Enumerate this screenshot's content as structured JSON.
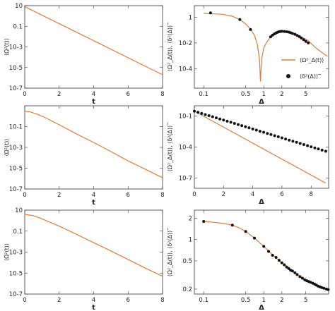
{
  "colors": {
    "line": "#e07b39",
    "dot": "#111111",
    "axis": "#333333"
  },
  "legend": {
    "line_label": "⟨Ω²_Δ(t)⟩",
    "dot_label": "⟨δ²(Δ)⟩‾"
  },
  "chart_data": [
    {
      "id": "r1-left",
      "type": "line",
      "scale": "log-y",
      "xlabel": "t",
      "ylabel": "⟨Ω²(t)⟩",
      "xlim": [
        0,
        8
      ],
      "ylim": [
        1e-07,
        10
      ],
      "xticks": [
        0,
        2,
        4,
        6,
        8
      ],
      "xticklabels": [
        "0",
        "2",
        "4",
        "6",
        "8"
      ],
      "yticks": [
        10,
        0.1,
        0.001,
        1e-05,
        1e-07
      ],
      "yticklabels": [
        "10",
        "0.1",
        "10-3",
        "10-5",
        "10-7"
      ],
      "series": [
        {
          "x": [
            0,
            8
          ],
          "y": [
            8,
            2e-06
          ]
        }
      ]
    },
    {
      "id": "r1-right",
      "type": "line",
      "scale": "log-log",
      "xlabel": "Δ",
      "ylabel": "⟨Ω²_Δ(t)⟩, ⟨δ²(Δ)⟩‾",
      "xlim": [
        0.07,
        12
      ],
      "ylim": [
        3e-06,
        8
      ],
      "xticks": [
        0.1,
        0.5,
        1,
        2,
        5
      ],
      "xticklabels": [
        "0.1",
        "0.5",
        "1",
        "2",
        "5"
      ],
      "yticks": [
        1,
        0.01,
        0.0001
      ],
      "yticklabels": [
        "1",
        "10-2",
        "10-4"
      ],
      "legend": true,
      "series": [
        {
          "x": [
            0.1,
            0.2,
            0.3,
            0.4,
            0.5,
            0.6,
            0.7,
            0.78,
            0.85,
            0.88,
            0.92,
            1.0,
            1.1,
            1.3,
            1.6,
            2.0,
            2.6,
            3.3,
            4.2,
            5.5,
            7.0,
            9.0,
            11.5
          ],
          "y": [
            2.0,
            1.7,
            1.2,
            0.65,
            0.3,
            0.12,
            0.04,
            0.008,
            0.0005,
            1e-05,
            0.0005,
            0.004,
            0.01,
            0.03,
            0.06,
            0.08,
            0.07,
            0.05,
            0.03,
            0.015,
            0.005,
            0.002,
            0.0009
          ]
        },
        {
          "x": [
            0.13,
            0.4,
            0.6,
            1.3,
            1.4,
            1.5,
            1.6,
            1.7,
            1.8,
            1.9,
            2.0,
            2.2,
            2.4,
            2.6,
            2.8,
            3.0,
            3.3,
            3.6,
            3.9,
            4.2,
            4.6,
            5.0,
            5.5
          ],
          "y": [
            2.2,
            0.65,
            0.11,
            0.03,
            0.04,
            0.05,
            0.06,
            0.068,
            0.075,
            0.078,
            0.08,
            0.078,
            0.074,
            0.07,
            0.062,
            0.055,
            0.047,
            0.038,
            0.031,
            0.024,
            0.018,
            0.013,
            0.01
          ]
        }
      ]
    },
    {
      "id": "r2-left",
      "type": "line",
      "scale": "log-y",
      "xlabel": "t",
      "ylabel": "⟨Ω²(t)⟩",
      "xlim": [
        0,
        8
      ],
      "ylim": [
        1e-07,
        10
      ],
      "xticks": [
        0,
        2,
        4,
        6,
        8
      ],
      "xticklabels": [
        "0",
        "2",
        "4",
        "6",
        "8"
      ],
      "yticks": [
        0.1,
        0.001,
        1e-05,
        1e-07
      ],
      "yticklabels": [
        "10-1",
        "10-3",
        "10-5",
        "10-7"
      ],
      "series": [
        {
          "x": [
            0,
            0.3,
            0.7,
            1.2,
            2,
            3,
            4,
            5,
            6,
            7,
            8
          ],
          "y": [
            3,
            2.6,
            1.6,
            0.7,
            0.15,
            0.02,
            0.003,
            0.0004,
            5e-05,
            8e-06,
            1.2e-06
          ]
        }
      ]
    },
    {
      "id": "r2-right",
      "type": "line",
      "scale": "log-y",
      "xlabel": "Δ",
      "ylabel": "⟨Ω²_Δ(t)⟩, ⟨δ²(Δ)⟩‾",
      "xlim": [
        0,
        9.2
      ],
      "ylim": [
        1e-08,
        1
      ],
      "xticks": [
        0,
        2,
        4,
        6,
        8
      ],
      "xticklabels": [
        "0",
        "2",
        "4",
        "6",
        "8"
      ],
      "yticks": [
        0.1,
        0.0001,
        1e-07
      ],
      "yticklabels": [
        "10-1",
        "10-4",
        "10-7"
      ],
      "series": [
        {
          "x": [
            0,
            9
          ],
          "y": [
            0.3,
            3.2e-08
          ]
        },
        {
          "x": [
            0,
            0.25,
            0.5,
            0.75,
            1.0,
            1.25,
            1.5,
            1.75,
            2.0,
            2.25,
            2.5,
            2.75,
            3.0,
            3.25,
            3.5,
            3.75,
            4.0,
            4.25,
            4.5,
            4.75,
            5.0,
            5.25,
            5.5,
            5.75,
            6.0,
            6.25,
            6.5,
            6.75,
            7.0,
            7.25,
            7.5,
            7.75,
            8.0,
            8.25,
            8.5,
            8.75,
            9.0
          ],
          "y": [
            0.3,
            0.23,
            0.18,
            0.14,
            0.11,
            0.087,
            0.068,
            0.053,
            0.041,
            0.032,
            0.025,
            0.0195,
            0.0152,
            0.0119,
            0.0093,
            0.0072,
            0.0056,
            0.0044,
            0.0034,
            0.0027,
            0.0021,
            0.00163,
            0.00127,
            0.00099,
            0.00077,
            0.0006,
            0.00047,
            0.00037,
            0.00029,
            0.000223,
            0.000174,
            0.000136,
            0.000106,
            8.2e-05,
            6.4e-05,
            5e-05,
            3.9e-05
          ]
        }
      ]
    },
    {
      "id": "r3-left",
      "type": "line",
      "scale": "log-y",
      "xlabel": "t",
      "ylabel": "⟨Ω²(t)⟩",
      "xlim": [
        0,
        8
      ],
      "ylim": [
        1e-07,
        10
      ],
      "xticks": [
        0,
        2,
        4,
        6,
        8
      ],
      "xticklabels": [
        "0",
        "2",
        "4",
        "6",
        "8"
      ],
      "yticks": [
        10,
        0.1,
        0.001,
        1e-05,
        1e-07
      ],
      "yticklabels": [
        "10",
        "0.1",
        "10-3",
        "10-5",
        "10-7"
      ],
      "series": [
        {
          "x": [
            0,
            0.5,
            1,
            2,
            3,
            4,
            5,
            6,
            7,
            8
          ],
          "y": [
            4,
            3,
            1.5,
            0.3,
            0.05,
            0.008,
            0.0013,
            0.0002,
            3e-05,
            5e-06
          ]
        }
      ]
    },
    {
      "id": "r3-right",
      "type": "line",
      "scale": "log-log",
      "xlabel": "Δ",
      "ylabel": "⟨Ω²_Δ(t)⟩, ⟨δ²(Δ)⟩‾",
      "xlim": [
        0.07,
        12
      ],
      "ylim": [
        0.17,
        2.6
      ],
      "xticks": [
        0.1,
        0.5,
        1,
        2,
        5
      ],
      "xticklabels": [
        "0.1",
        "0.5",
        "1",
        "2",
        "5"
      ],
      "yticks": [
        2,
        1,
        0.5,
        0.2
      ],
      "yticklabels": [
        "2",
        "1",
        "0.5",
        "0.2"
      ],
      "series": [
        {
          "x": [
            0.1,
            0.15,
            0.2,
            0.3,
            0.4,
            0.5,
            0.7,
            1.0,
            1.5,
            2.0,
            3.0,
            4.0,
            6.0,
            8.0,
            11.5
          ],
          "y": [
            1.8,
            1.75,
            1.7,
            1.6,
            1.45,
            1.3,
            1.05,
            0.8,
            0.58,
            0.47,
            0.36,
            0.3,
            0.25,
            0.22,
            0.2
          ]
        },
        {
          "x": [
            0.1,
            0.3,
            0.5,
            0.7,
            1.0,
            1.2,
            1.4,
            1.6,
            1.8,
            2.0,
            2.2,
            2.4,
            2.6,
            2.8,
            3.0,
            3.3,
            3.6,
            4.0,
            4.4,
            4.8,
            5.2,
            5.6,
            6.0,
            6.5,
            7.0,
            7.5,
            8.0,
            8.6,
            9.2,
            10.0,
            11.0,
            11.8
          ],
          "y": [
            1.8,
            1.6,
            1.3,
            1.05,
            0.8,
            0.68,
            0.6,
            0.56,
            0.51,
            0.47,
            0.44,
            0.41,
            0.39,
            0.37,
            0.36,
            0.34,
            0.32,
            0.3,
            0.285,
            0.27,
            0.262,
            0.255,
            0.25,
            0.242,
            0.235,
            0.228,
            0.22,
            0.215,
            0.21,
            0.205,
            0.2,
            0.197
          ]
        }
      ]
    }
  ]
}
